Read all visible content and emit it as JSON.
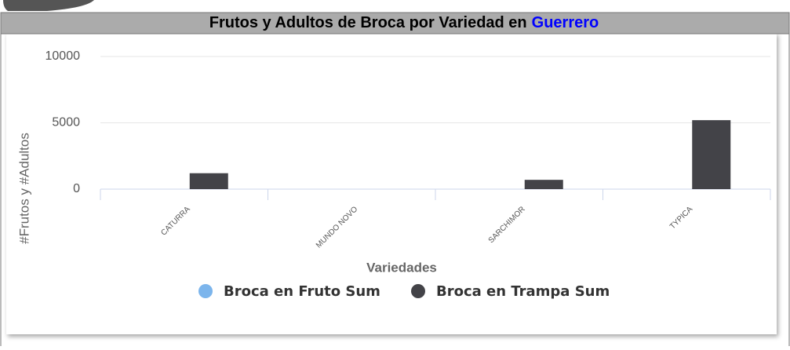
{
  "chart_data": {
    "type": "bar",
    "title": "Frutos y Adultos de Broca por Variedad en",
    "region": "Guerrero",
    "x_label": "Variedades",
    "y_label": "#Frutos y #Adultos",
    "categories": [
      "CATURRA",
      "MUNDO NOVO",
      "SARCHIMOR",
      "TYPICA"
    ],
    "series": [
      {
        "name": "Broca en Fruto Sum",
        "color": "#7cb5ec",
        "values": [
          0,
          0,
          0,
          0
        ]
      },
      {
        "name": "Broca en Trampa Sum",
        "color": "#434348",
        "values": [
          1200,
          0,
          700,
          5200
        ]
      }
    ],
    "ylim": [
      0,
      10000
    ],
    "yticks": [
      0,
      5000,
      10000
    ],
    "grid": true
  }
}
